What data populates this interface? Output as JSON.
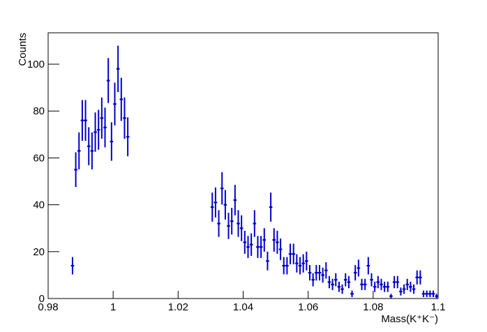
{
  "chart_data": {
    "type": "errorbar",
    "xlabel": "Mass(K⁺K⁻)",
    "ylabel": "Counts",
    "color": "#0000cc",
    "x": [
      0.9875,
      0.9885,
      0.9895,
      0.9905,
      0.9915,
      0.9925,
      0.9935,
      0.9945,
      0.9955,
      0.9965,
      0.9975,
      0.9985,
      0.9995,
      1.0005,
      1.0015,
      1.0025,
      1.0035,
      1.0045,
      1.0305,
      1.0315,
      1.0325,
      1.0335,
      1.0345,
      1.0355,
      1.0365,
      1.0375,
      1.0385,
      1.0395,
      1.0405,
      1.0415,
      1.0425,
      1.0435,
      1.0445,
      1.0455,
      1.0465,
      1.0475,
      1.0485,
      1.0495,
      1.0505,
      1.0515,
      1.0525,
      1.0535,
      1.0545,
      1.0555,
      1.0565,
      1.0575,
      1.0585,
      1.0595,
      1.0605,
      1.0615,
      1.0625,
      1.0635,
      1.0645,
      1.0655,
      1.0665,
      1.0675,
      1.0685,
      1.0695,
      1.0705,
      1.0715,
      1.0725,
      1.0735,
      1.0745,
      1.0755,
      1.0765,
      1.0775,
      1.0785,
      1.0795,
      1.0805,
      1.0815,
      1.0825,
      1.0835,
      1.0845,
      1.0855,
      1.0865,
      1.0875,
      1.0885,
      1.0895,
      1.0905,
      1.0915,
      1.0925,
      1.0935,
      1.0945,
      1.0955,
      1.0965,
      1.0975,
      1.0985,
      1.0995
    ],
    "xerr": 0.0005,
    "values": [
      14,
      55,
      63,
      76,
      76,
      65,
      63,
      71,
      72,
      77,
      73,
      93,
      67,
      83,
      98,
      85,
      77,
      69,
      39,
      41,
      32,
      47,
      40,
      31,
      33,
      42,
      32,
      30,
      24,
      22,
      23,
      32,
      22,
      22,
      25,
      16,
      39,
      25,
      24,
      21,
      14,
      14,
      19,
      19,
      15,
      14,
      15,
      16,
      11,
      8,
      11,
      11,
      10,
      12,
      7,
      6,
      8,
      5,
      4,
      8,
      7,
      2,
      11,
      13,
      6,
      6,
      14,
      8,
      5,
      7,
      6,
      5,
      5,
      1,
      7,
      7,
      3,
      4,
      6,
      5,
      4,
      9,
      9,
      2,
      2,
      2,
      2,
      1
    ],
    "errors": [
      3.7,
      7.4,
      7.9,
      8.7,
      8.7,
      8.1,
      7.9,
      8.4,
      8.5,
      8.8,
      8.5,
      9.6,
      8.2,
      9.1,
      9.9,
      9.2,
      8.8,
      8.3,
      6.2,
      6.4,
      5.7,
      6.9,
      6.3,
      5.6,
      5.7,
      6.5,
      5.7,
      5.5,
      4.9,
      4.7,
      4.8,
      5.7,
      4.7,
      4.7,
      5,
      4,
      6.2,
      5,
      4.9,
      4.6,
      3.7,
      3.7,
      4.4,
      4.4,
      3.9,
      3.7,
      3.9,
      4,
      3.3,
      2.8,
      3.3,
      3.3,
      3.2,
      3.5,
      2.6,
      2.4,
      2.8,
      2.2,
      2,
      2.8,
      2.6,
      1.4,
      3.3,
      3.6,
      2.4,
      2.4,
      3.7,
      2.8,
      2.2,
      2.6,
      2.4,
      2.2,
      2.2,
      1,
      2.6,
      2.6,
      1.7,
      2,
      2.4,
      2.2,
      2,
      3,
      3,
      1.4,
      1.4,
      1.4,
      1.4,
      1
    ],
    "xlim": [
      0.98,
      1.1
    ],
    "ylim": [
      0,
      113.4
    ],
    "xticks": [
      0.98,
      1,
      1.02,
      1.04,
      1.06,
      1.08,
      1.1
    ],
    "yticks": [
      0,
      20,
      40,
      60,
      80,
      100
    ]
  }
}
